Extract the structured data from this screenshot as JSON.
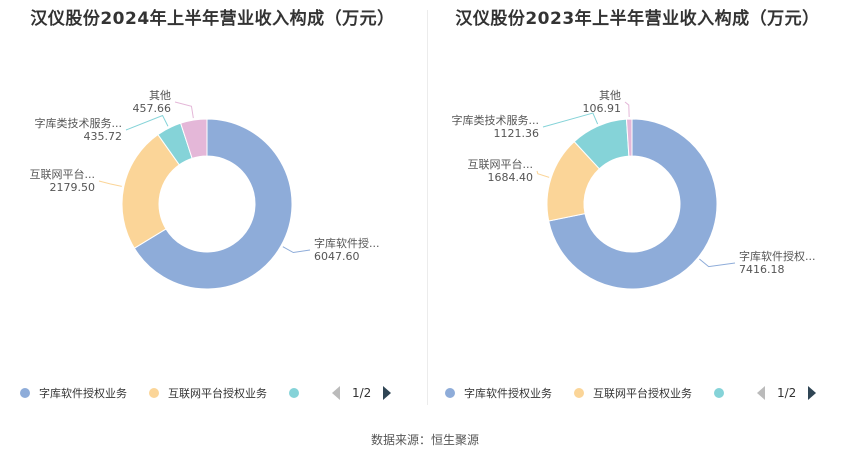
{
  "colors": [
    "#8eacd9",
    "#fbd598",
    "#85d3d8",
    "#e4b7d8"
  ],
  "source": "数据来源：恒生聚源",
  "chart_data": [
    {
      "type": "pie",
      "title": "汉仪股份2024年上半年营业收入构成（万元）",
      "categories": [
        "字库软件授权业务",
        "互联网平台授权业务",
        "字库类技术服务业务",
        "其他"
      ],
      "slice_labels": [
        "字库软件授...",
        "互联网平台...",
        "字库类技术服务...",
        "其他"
      ],
      "values": [
        6047.6,
        2179.5,
        435.72,
        457.66
      ],
      "value_labels": [
        "6047.60",
        "2179.50",
        "435.72",
        "457.66"
      ],
      "legend": {
        "position": "bottom",
        "visible_items": [
          "字库软件授权业务",
          "互联网平台授权业务"
        ],
        "page": "1/2"
      }
    },
    {
      "type": "pie",
      "title": "汉仪股份2023年上半年营业收入构成（万元）",
      "categories": [
        "字库软件授权业务",
        "互联网平台授权业务",
        "字库类技术服务业务",
        "其他"
      ],
      "slice_labels": [
        "字库软件授权...",
        "互联网平台...",
        "字库类技术服务...",
        "其他"
      ],
      "values": [
        7416.18,
        1684.4,
        1121.36,
        106.91
      ],
      "value_labels": [
        "7416.18",
        "1684.40",
        "1121.36",
        "106.91"
      ],
      "legend": {
        "position": "bottom",
        "visible_items": [
          "字库软件授权业务",
          "互联网平台授权业务"
        ],
        "page": "1/2"
      }
    }
  ]
}
